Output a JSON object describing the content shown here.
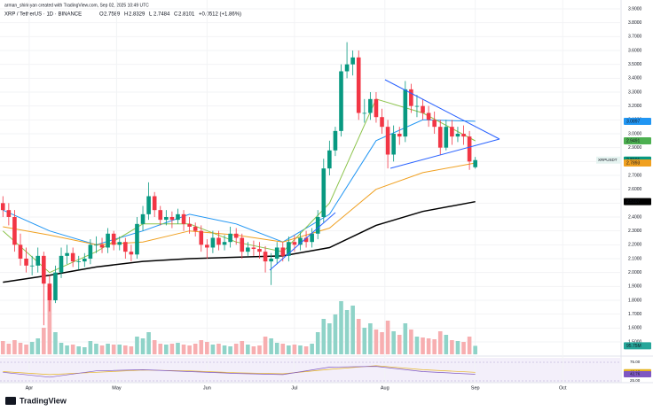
{
  "header": {
    "author_line": "arman_shirinyan created with TradingView.com, Sep 02, 2025 10:49 UTC",
    "symbol": "XRP / TetherUS · 1D · BINANCE",
    "ohlc": [
      {
        "key": "O",
        "value": "2.7589"
      },
      {
        "key": "H",
        "value": "2.8329"
      },
      {
        "key": "L",
        "value": "2.7484"
      },
      {
        "key": "C",
        "value": "2.8101"
      }
    ],
    "change": "+0.0512 (+1.86%)"
  },
  "footer": {
    "brand": "TradingView"
  },
  "chart_data": {
    "type": "candlestick",
    "open": [
      2.5,
      2.45,
      2.4,
      2.2,
      2.1,
      2.05,
      2.05,
      2.12,
      1.92,
      1.8,
      2.0,
      2.12,
      2.14,
      2.08,
      2.08,
      2.1,
      2.2,
      2.2,
      2.18,
      2.28,
      2.2,
      2.22,
      2.15,
      2.13,
      2.35,
      2.42,
      2.55,
      2.45,
      2.38,
      2.4,
      2.38,
      2.42,
      2.35,
      2.33,
      2.3,
      2.2,
      2.18,
      2.25,
      2.2,
      2.22,
      2.28,
      2.25,
      2.15,
      2.18,
      2.17,
      2.15,
      2.08,
      2.1,
      2.18,
      2.12,
      2.22,
      2.2,
      2.25,
      2.22,
      2.28,
      2.4,
      2.75,
      2.88,
      3.02,
      3.45,
      3.5,
      3.55,
      3.15,
      3.15,
      3.25,
      3.12,
      3.05,
      2.85,
      3.0,
      2.98,
      3.32,
      3.2,
      3.2,
      3.15,
      3.1,
      3.05,
      2.9,
      3.05,
      2.98,
      3.0,
      2.98,
      2.7589
    ],
    "high": [
      2.55,
      2.5,
      2.45,
      2.28,
      2.18,
      2.12,
      2.18,
      2.15,
      1.98,
      2.05,
      2.18,
      2.2,
      2.18,
      2.12,
      2.14,
      2.24,
      2.26,
      2.25,
      2.32,
      2.3,
      2.26,
      2.25,
      2.2,
      2.4,
      2.48,
      2.65,
      2.58,
      2.48,
      2.45,
      2.44,
      2.46,
      2.45,
      2.4,
      2.36,
      2.34,
      2.24,
      2.3,
      2.3,
      2.27,
      2.33,
      2.32,
      2.28,
      2.22,
      2.23,
      2.22,
      2.19,
      2.14,
      2.22,
      2.22,
      2.26,
      2.27,
      2.29,
      2.3,
      2.32,
      2.45,
      2.82,
      2.95,
      3.05,
      3.5,
      3.66,
      3.6,
      3.6,
      3.25,
      3.3,
      3.3,
      3.18,
      3.1,
      3.06,
      3.05,
      3.38,
      3.36,
      3.28,
      3.25,
      3.2,
      3.16,
      3.1,
      3.1,
      3.1,
      3.05,
      3.06,
      3.02,
      2.8329
    ],
    "low": [
      2.4,
      2.34,
      2.15,
      2.05,
      2.0,
      1.98,
      2.0,
      1.62,
      1.72,
      1.78,
      1.96,
      2.06,
      2.04,
      2.02,
      2.04,
      2.06,
      2.14,
      2.14,
      2.14,
      2.16,
      2.16,
      2.1,
      2.08,
      2.1,
      2.3,
      2.38,
      2.4,
      2.34,
      2.34,
      2.32,
      2.35,
      2.3,
      2.28,
      2.26,
      2.15,
      2.1,
      2.14,
      2.16,
      2.16,
      2.18,
      2.2,
      2.1,
      2.12,
      2.12,
      2.1,
      2.0,
      1.91,
      2.06,
      2.08,
      2.08,
      2.15,
      2.16,
      2.18,
      2.18,
      2.24,
      2.36,
      2.7,
      2.84,
      2.98,
      3.4,
      3.42,
      3.1,
      3.08,
      3.1,
      3.08,
      3.0,
      2.75,
      2.8,
      2.92,
      2.94,
      3.15,
      3.12,
      3.1,
      3.05,
      3.0,
      2.85,
      2.88,
      2.92,
      2.94,
      2.92,
      2.74,
      2.7484
    ],
    "close": [
      2.45,
      2.4,
      2.2,
      2.1,
      2.05,
      2.05,
      2.12,
      1.92,
      1.8,
      2.0,
      2.12,
      2.14,
      2.08,
      2.08,
      2.1,
      2.2,
      2.2,
      2.18,
      2.28,
      2.2,
      2.22,
      2.15,
      2.13,
      2.35,
      2.42,
      2.55,
      2.45,
      2.38,
      2.4,
      2.38,
      2.42,
      2.35,
      2.33,
      2.3,
      2.2,
      2.18,
      2.25,
      2.2,
      2.22,
      2.28,
      2.25,
      2.15,
      2.18,
      2.17,
      2.15,
      2.08,
      2.1,
      2.18,
      2.12,
      2.22,
      2.2,
      2.25,
      2.22,
      2.28,
      2.4,
      2.75,
      2.88,
      3.02,
      3.45,
      3.5,
      3.55,
      3.15,
      3.15,
      3.25,
      3.12,
      3.05,
      2.85,
      3.0,
      2.98,
      3.32,
      3.2,
      3.2,
      3.15,
      3.1,
      3.05,
      2.9,
      3.05,
      2.98,
      3.0,
      2.98,
      2.8,
      2.8101
    ],
    "colors": {
      "up": "#089981",
      "down": "#f23645",
      "volume_up": "#8fd3c8",
      "volume_down": "#f7aeb0"
    },
    "xlim": [
      -0.5,
      106
    ],
    "ylim": [
      1.5,
      3.9
    ],
    "yticks": [
      {
        "value": 1.5,
        "label": "1.5000"
      },
      {
        "value": 1.6,
        "label": "1.6000"
      },
      {
        "value": 1.7,
        "label": "1.7000"
      },
      {
        "value": 1.8,
        "label": "1.8000"
      },
      {
        "value": 1.9,
        "label": "1.9000"
      },
      {
        "value": 2.0,
        "label": "2.0000"
      },
      {
        "value": 2.1,
        "label": "2.1000"
      },
      {
        "value": 2.2,
        "label": "2.2000"
      },
      {
        "value": 2.3,
        "label": "2.3000"
      },
      {
        "value": 2.4,
        "label": "2.4000"
      },
      {
        "value": 2.5,
        "label": "2.5000"
      },
      {
        "value": 2.6,
        "label": "2.6000"
      },
      {
        "value": 2.7,
        "label": "2.7000"
      },
      {
        "value": 2.8,
        "label": "2.8000"
      },
      {
        "value": 2.9,
        "label": "2.9000"
      },
      {
        "value": 3.0,
        "label": "3.0000"
      },
      {
        "value": 3.1,
        "label": "3.1000"
      },
      {
        "value": 3.2,
        "label": "3.2000"
      },
      {
        "value": 3.3,
        "label": "3.3000"
      },
      {
        "value": 3.4,
        "label": "3.4000"
      },
      {
        "value": 3.5,
        "label": "3.5000"
      },
      {
        "value": 3.6,
        "label": "3.6000"
      },
      {
        "value": 3.7,
        "label": "3.7000"
      },
      {
        "value": 3.8,
        "label": "3.8000"
      },
      {
        "value": 3.9,
        "label": "3.9000"
      }
    ],
    "xticks": [
      {
        "value": 4.5,
        "label": "Apr"
      },
      {
        "value": 19.5,
        "label": "May"
      },
      {
        "value": 35,
        "label": "Jun"
      },
      {
        "value": 50,
        "label": "Jul"
      },
      {
        "value": 65.5,
        "label": "Aug"
      },
      {
        "value": 81,
        "label": "Sep"
      },
      {
        "value": 96,
        "label": "Oct"
      }
    ],
    "grid": true,
    "volume": {
      "values": [
        150,
        120,
        160,
        130,
        110,
        140,
        180,
        300,
        700,
        250,
        130,
        100,
        110,
        90,
        80,
        150,
        120,
        100,
        120,
        110,
        110,
        100,
        90,
        200,
        180,
        250,
        160,
        120,
        110,
        120,
        130,
        110,
        100,
        120,
        160,
        140,
        110,
        120,
        100,
        90,
        120,
        150,
        110,
        90,
        100,
        200,
        180,
        130,
        120,
        100,
        110,
        100,
        90,
        120,
        250,
        400,
        350,
        450,
        600,
        500,
        550,
        400,
        300,
        350,
        280,
        250,
        380,
        260,
        220,
        350,
        280,
        200,
        190,
        180,
        170,
        260,
        220,
        160,
        150,
        140,
        200,
        95.75
      ],
      "ylim": [
        0,
        800
      ],
      "last_label": "95.75M"
    },
    "moving_averages": [
      {
        "color": "#2196f3",
        "x": [
          0,
          8,
          16,
          24,
          32,
          40,
          48,
          56,
          64,
          72,
          81
        ],
        "values": [
          2.45,
          2.3,
          2.2,
          2.3,
          2.42,
          2.35,
          2.22,
          2.42,
          2.95,
          3.1,
          3.0897
        ]
      },
      {
        "color": "#8bc34a",
        "x": [
          0,
          8,
          16,
          24,
          32,
          40,
          48,
          56,
          64,
          72,
          81
        ],
        "values": [
          2.3,
          2.0,
          2.15,
          2.35,
          2.35,
          2.22,
          2.15,
          2.5,
          3.25,
          3.15,
          2.9491
        ]
      },
      {
        "color": "#f0a020",
        "x": [
          0,
          8,
          16,
          24,
          32,
          40,
          48,
          56,
          64,
          72,
          81
        ],
        "values": [
          2.33,
          2.27,
          2.2,
          2.22,
          2.3,
          2.27,
          2.22,
          2.32,
          2.6,
          2.72,
          2.7893
        ]
      },
      {
        "color": "#000000",
        "x": [
          0,
          8,
          16,
          24,
          32,
          40,
          48,
          56,
          64,
          72,
          81
        ],
        "values": [
          1.93,
          1.98,
          2.04,
          2.08,
          2.1,
          2.11,
          2.12,
          2.18,
          2.34,
          2.44,
          2.5107
        ]
      }
    ],
    "price_tags": [
      {
        "value": 3.0897,
        "label": "3.0897",
        "color": "#2196f3"
      },
      {
        "value": 2.9491,
        "label": "2.9491",
        "color": "#4caf50"
      },
      {
        "value": 2.8101,
        "label": "2.8101",
        "color": "#089981"
      },
      {
        "value": 2.7893,
        "label": "2.7893",
        "color": "#f0a020"
      },
      {
        "value": 2.5107,
        "label": "2.5107",
        "color": "#000000"
      }
    ],
    "symbol_tag": "XRPUSDT",
    "rsi": {
      "x": [
        0,
        8,
        16,
        24,
        32,
        40,
        48,
        56,
        64,
        72,
        81
      ],
      "values": [
        48,
        35,
        52,
        55,
        50,
        45,
        42,
        62,
        64,
        50,
        42.76
      ],
      "signal": [
        50,
        42,
        48,
        54,
        52,
        47,
        44,
        56,
        66,
        55,
        48.13
      ],
      "ylim": [
        25,
        75
      ],
      "yticks": [
        {
          "value": 75,
          "label": "75.00"
        },
        {
          "value": 25,
          "label": "25.00"
        }
      ],
      "tags": [
        {
          "value": 48.13,
          "label": "48.13",
          "color": "#e6b422"
        },
        {
          "value": 42.76,
          "label": "42.76",
          "color": "#7e57c2"
        }
      ],
      "line_color": "#7e57c2",
      "signal_color": "#e6b422"
    }
  }
}
